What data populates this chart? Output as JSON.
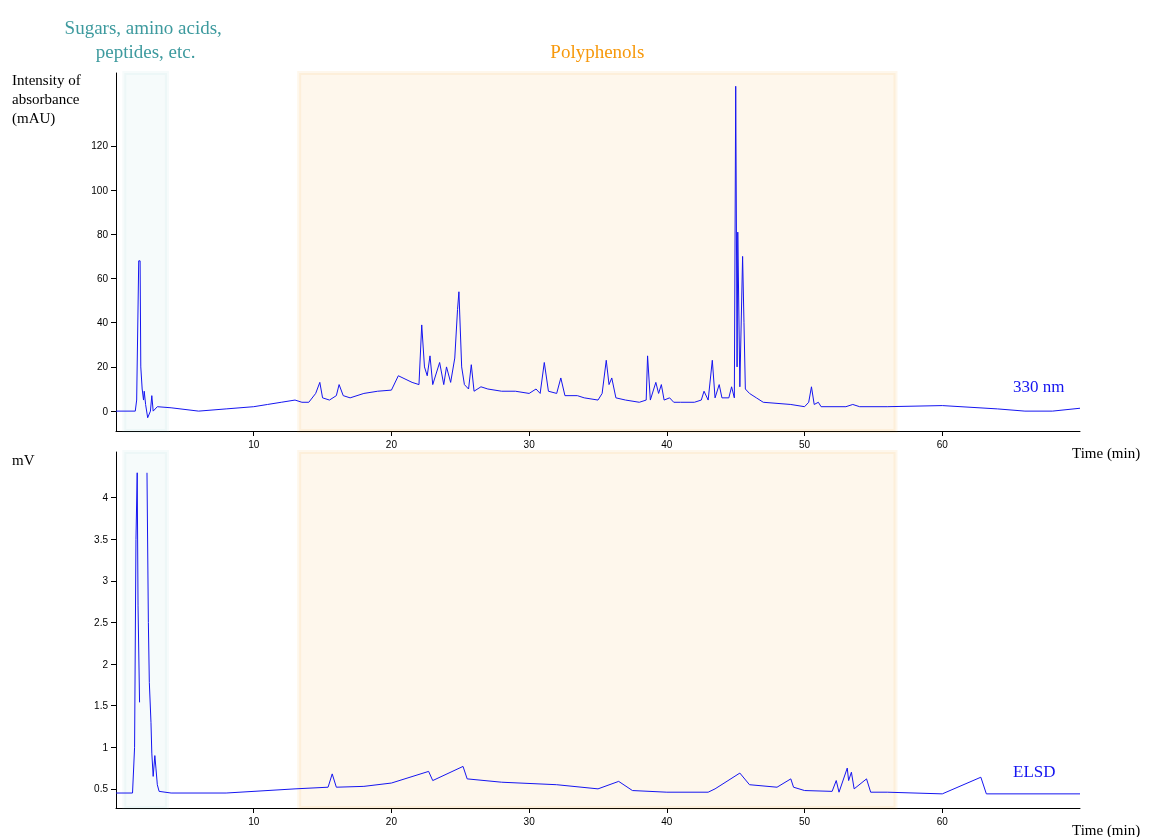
{
  "chart_data": [
    {
      "type": "line",
      "xlabel": "Time (min)",
      "ylabel": "Intensity of absorbance (mAU)",
      "xlim": [
        0,
        70
      ],
      "xticks": [
        10,
        20,
        30,
        40,
        50,
        60
      ],
      "ylim": [
        -9,
        153
      ],
      "yticks": [
        0,
        20,
        40,
        60,
        80,
        100,
        120
      ],
      "bands": [
        {
          "axis": "x",
          "from": 0.6,
          "to": 3.7,
          "label": "Sugars, amino acids, peptides, etc.",
          "color": "#8ecbd0"
        },
        {
          "axis": "x",
          "from": 13.3,
          "to": 56.6,
          "label": "Polyphenols",
          "color": "#f7990c"
        }
      ],
      "series": [
        {
          "name": "330 nm",
          "color": "#1515f0",
          "x": [
            0,
            1.4,
            1.5,
            1.65,
            1.75,
            1.8,
            1.9,
            2.0,
            2.05,
            2.15,
            2.3,
            2.5,
            2.6,
            2.7,
            3,
            4,
            6,
            8,
            10,
            11,
            12,
            13,
            13.5,
            14,
            14.5,
            14.8,
            15,
            15.5,
            16,
            16.2,
            16.5,
            17,
            18,
            19,
            20,
            20.5,
            21.5,
            22,
            22.2,
            22.4,
            22.6,
            22.8,
            23,
            23.5,
            23.8,
            24,
            24.3,
            24.6,
            24.8,
            24.9,
            25.1,
            25.3,
            25.6,
            25.8,
            26,
            26.5,
            27,
            28,
            29,
            30,
            30.5,
            30.8,
            31.1,
            31.4,
            32,
            32.3,
            32.6,
            33.5,
            34,
            35,
            35.3,
            35.6,
            35.8,
            36,
            36.3,
            37,
            38,
            38.5,
            38.6,
            38.8,
            39.2,
            39.4,
            39.6,
            39.8,
            40.2,
            40.5,
            41,
            42,
            42.5,
            42.7,
            43,
            43.3,
            43.5,
            43.8,
            44,
            44.5,
            44.7,
            44.9,
            45,
            45.1,
            45.15,
            45.3,
            45.5,
            45.6,
            45.7,
            46,
            46.5,
            47,
            49,
            50,
            50.3,
            50.5,
            50.7,
            51,
            51.2,
            53,
            53.5,
            54,
            56,
            60,
            64,
            66,
            68,
            70
          ],
          "values": [
            0,
            0,
            5,
            68,
            68,
            20,
            10,
            5,
            9,
            3,
            -3,
            0,
            7,
            0,
            2,
            1.5,
            0,
            1,
            2,
            3,
            4,
            5,
            4,
            4,
            8,
            13,
            6,
            5,
            7,
            12,
            7,
            6,
            8,
            9,
            9.5,
            16,
            13,
            12,
            39,
            20,
            16,
            25,
            12,
            22,
            12,
            20,
            13,
            24,
            46,
            54,
            20,
            12,
            10,
            21,
            9,
            11,
            10,
            9,
            9,
            8,
            10,
            8,
            22,
            9,
            8,
            15,
            7,
            7,
            6,
            5,
            8,
            23,
            12,
            15,
            6,
            5,
            4,
            5,
            25,
            5,
            13,
            8,
            12,
            5,
            6,
            4,
            4,
            4,
            5,
            9,
            5,
            23,
            6,
            12,
            6,
            6,
            11,
            6,
            147,
            20,
            81,
            11,
            70,
            40,
            10,
            8,
            6,
            4,
            3,
            2,
            4,
            11,
            3,
            4,
            2,
            2,
            3,
            2,
            2,
            2.5,
            1,
            0,
            0,
            1.3
          ]
        }
      ]
    },
    {
      "type": "line",
      "xlabel": "Time (min)",
      "ylabel": "mV",
      "xlim": [
        0,
        70
      ],
      "xticks": [
        10,
        20,
        30,
        40,
        50,
        60
      ],
      "ylim": [
        0.27,
        4.55
      ],
      "yticks": [
        0.5,
        1,
        1.5,
        2,
        2.5,
        3,
        3.5,
        4
      ],
      "bands": [
        {
          "axis": "x",
          "from": 0.6,
          "to": 3.7,
          "color": "#8ecbd0"
        },
        {
          "axis": "x",
          "from": 13.3,
          "to": 56.6,
          "color": "#f7990c"
        }
      ],
      "series": [
        {
          "name": "ELSD",
          "color": "#1515f0",
          "x": [
            0,
            1.2,
            1.35,
            1.45,
            1.54,
            1.6,
            1.71,
            1.76,
            1.85,
            2.18,
            2.25,
            2.35,
            2.42,
            2.54,
            2.6,
            2.7,
            2.82,
            2.9,
            3.0,
            3.13,
            4,
            8,
            13,
            15.4,
            15.7,
            16,
            18,
            20,
            22.7,
            23,
            25.2,
            25.5,
            28,
            32,
            35,
            36.5,
            37.5,
            40,
            43,
            43.5,
            45.3,
            46,
            48,
            49.0,
            49.2,
            50,
            52,
            52.3,
            52.5,
            53.1,
            53.2,
            53.4,
            53.6,
            54.5,
            54.8,
            56,
            60,
            62.8,
            63.2,
            70
          ],
          "values": [
            0.45,
            0.45,
            1.0,
            3.5,
            4.3,
            2.7,
            1.54,
            null,
            null,
            null,
            4.3,
            2.5,
            1.78,
            1.3,
            0.93,
            0.65,
            0.9,
            0.75,
            0.55,
            0.47,
            0.45,
            0.45,
            0.5,
            0.52,
            0.68,
            0.52,
            0.53,
            0.57,
            0.71,
            0.6,
            0.77,
            0.62,
            0.58,
            0.55,
            0.5,
            0.59,
            0.48,
            0.46,
            0.46,
            0.5,
            0.69,
            0.55,
            0.52,
            0.62,
            0.52,
            0.48,
            0.47,
            0.6,
            0.46,
            0.75,
            0.6,
            0.7,
            0.5,
            0.62,
            0.46,
            0.46,
            0.44,
            0.64,
            0.44,
            0.44
          ]
        }
      ]
    }
  ]
}
